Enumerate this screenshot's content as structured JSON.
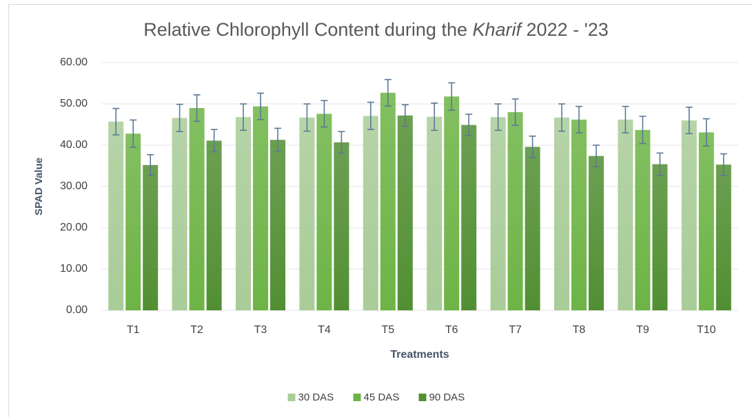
{
  "chart_data": {
    "type": "bar",
    "title": [
      "Relative Chlorophyll Content during the ",
      "Kharif",
      " 2022 - '23"
    ],
    "x_label": "Treatments",
    "y_label": "SPAD Value",
    "categories": [
      "T1",
      "T2",
      "T3",
      "T4",
      "T5",
      "T6",
      "T7",
      "T8",
      "T9",
      "T10"
    ],
    "series": [
      {
        "name": "30 DAS",
        "color": "#a9cc98",
        "values": [
          45.7,
          46.6,
          46.8,
          46.7,
          47.1,
          46.9,
          46.8,
          46.7,
          46.2,
          46.0
        ],
        "errors": [
          3.2,
          3.3,
          3.2,
          3.3,
          3.3,
          3.3,
          3.2,
          3.3,
          3.2,
          3.2
        ]
      },
      {
        "name": "45 DAS",
        "color": "#6db446",
        "values": [
          42.8,
          49.0,
          49.4,
          47.6,
          52.7,
          51.8,
          48.0,
          46.2,
          43.7,
          43.1
        ],
        "errors": [
          3.3,
          3.2,
          3.2,
          3.2,
          3.2,
          3.3,
          3.2,
          3.2,
          3.3,
          3.3
        ]
      },
      {
        "name": "90 DAS",
        "color": "#528f33",
        "values": [
          35.2,
          41.1,
          41.3,
          40.7,
          47.2,
          44.9,
          39.6,
          37.4,
          35.4,
          35.3
        ],
        "errors": [
          2.5,
          2.7,
          2.8,
          2.6,
          2.6,
          2.6,
          2.6,
          2.6,
          2.7,
          2.6
        ]
      }
    ],
    "ylim": [
      0,
      60
    ],
    "yticks": [
      {
        "value": 0,
        "label": "0.00"
      },
      {
        "value": 10,
        "label": "10.00"
      },
      {
        "value": 20,
        "label": "20.00"
      },
      {
        "value": 30,
        "label": "30.00"
      },
      {
        "value": 40,
        "label": "40.00"
      },
      {
        "value": 50,
        "label": "50.00"
      },
      {
        "value": 60,
        "label": "60.00"
      }
    ],
    "grid": true,
    "legend": "bottom",
    "error_color": "#5b7897"
  }
}
